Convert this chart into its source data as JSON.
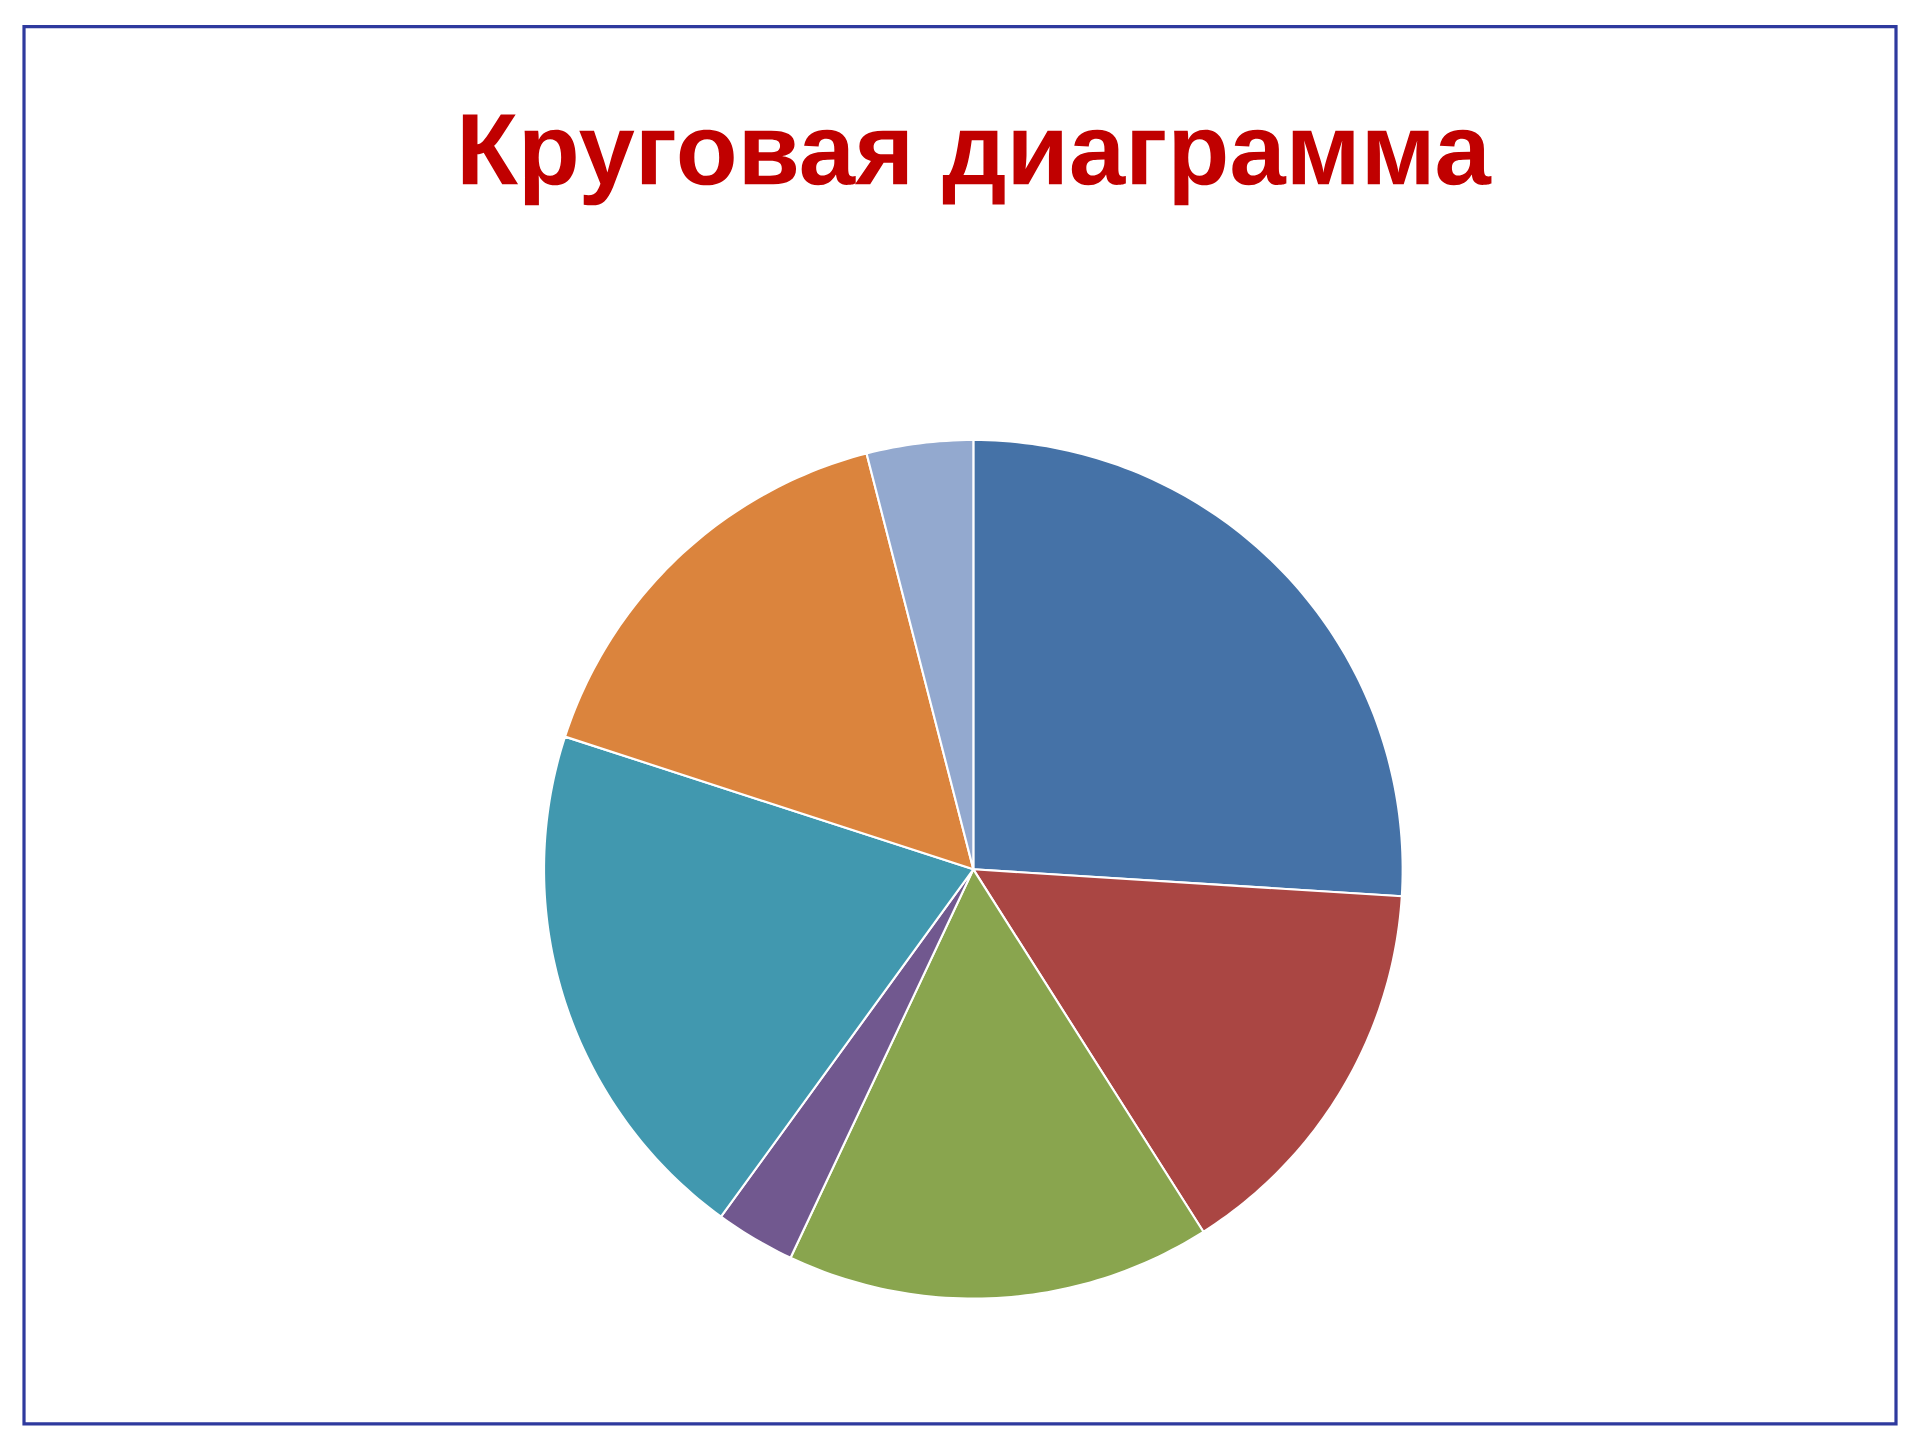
{
  "chart_data": {
    "type": "pie",
    "title": "Круговая диаграмма",
    "categories": [
      null,
      null,
      null,
      null,
      null,
      null,
      null
    ],
    "values": [
      26,
      15,
      16,
      3,
      20,
      16,
      4
    ],
    "colors": [
      "#4572a7",
      "#aa4643",
      "#89a54e",
      "#71588f",
      "#4198af",
      "#db843d",
      "#93a9cf"
    ]
  }
}
